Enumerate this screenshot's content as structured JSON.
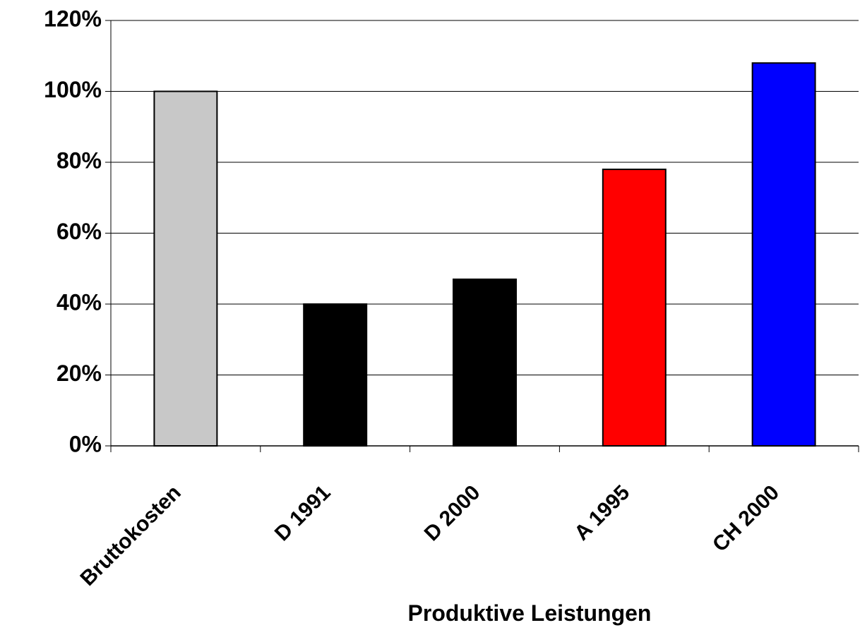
{
  "chart_data": {
    "type": "bar",
    "x_label": "Produktive Leistungen",
    "categories": [
      "Bruttokosten",
      "D 1991",
      "D 2000",
      "A 1995",
      "CH 2000"
    ],
    "values": [
      100,
      40,
      47,
      78,
      108
    ],
    "colors": [
      "#c8c8c8",
      "#000000",
      "#000000",
      "#ff0000",
      "#0000ff"
    ],
    "ylim": [
      0,
      120
    ],
    "yticks": [
      {
        "value": 0,
        "label": "0%"
      },
      {
        "value": 20,
        "label": "20%"
      },
      {
        "value": 40,
        "label": "40%"
      },
      {
        "value": 60,
        "label": "60%"
      },
      {
        "value": 80,
        "label": "80%"
      },
      {
        "value": 100,
        "label": "100%"
      },
      {
        "value": 120,
        "label": "120%"
      }
    ],
    "grid": true
  }
}
